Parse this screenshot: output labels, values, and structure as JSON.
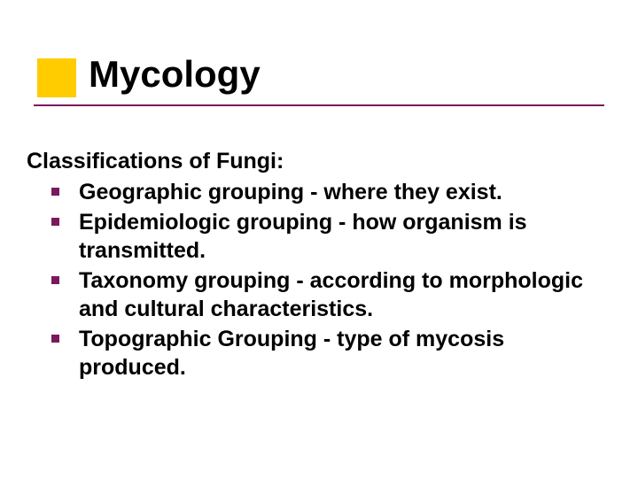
{
  "slide": {
    "title": "Mycology",
    "heading": "Classifications of Fungi:",
    "bullets": [
      "Geographic grouping - where they exist.",
      "Epidemiologic grouping - how organism is transmitted.",
      "Taxonomy grouping - according to morphologic and cultural characteristics.",
      "Topographic Grouping - type of mycosis produced."
    ]
  },
  "style": {
    "accent_color": "#ffcc00",
    "underline_color": "#7a1a5c",
    "bullet_color": "#7a1a5c",
    "title_fontsize": 42,
    "body_fontsize": 25,
    "background_color": "#ffffff",
    "text_color": "#000000"
  }
}
